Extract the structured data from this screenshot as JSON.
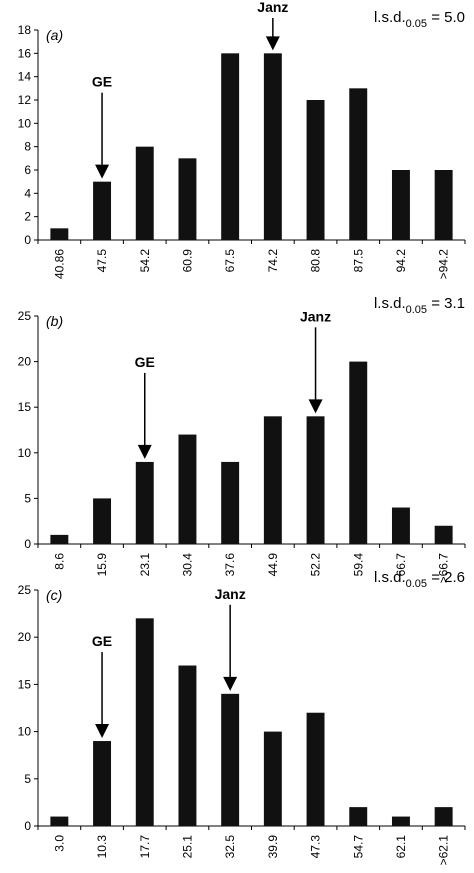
{
  "chart_data": [
    {
      "type": "bar",
      "panel_label": "(a)",
      "lsd": {
        "prefix": "l.s.d.",
        "subscript": "0.05",
        "value": " = 5.0"
      },
      "categories": [
        "40.86",
        "47.5",
        "54.2",
        "60.9",
        "67.5",
        "74.2",
        "80.8",
        "87.5",
        "94.2",
        ">94.2"
      ],
      "values": [
        1,
        5,
        8,
        7,
        16,
        16,
        12,
        13,
        6,
        6
      ],
      "color": "#111111",
      "ylim": [
        0,
        18
      ],
      "yticks": [
        0,
        2,
        4,
        6,
        8,
        10,
        12,
        14,
        16,
        18
      ],
      "annotations": [
        {
          "text": "GE",
          "category": "47.5"
        },
        {
          "text": "Janz",
          "category": "74.2"
        }
      ]
    },
    {
      "type": "bar",
      "panel_label": "(b)",
      "lsd": {
        "prefix": "l.s.d.",
        "subscript": "0.05",
        "value": " = 3.1"
      },
      "categories": [
        "8.6",
        "15.9",
        "23.1",
        "30.4",
        "37.6",
        "44.9",
        "52.2",
        "59.4",
        "66.7",
        ">66.7"
      ],
      "values": [
        1,
        5,
        9,
        12,
        9,
        14,
        14,
        20,
        4,
        2
      ],
      "color": "#111111",
      "ylim": [
        0,
        25
      ],
      "yticks": [
        0,
        5,
        10,
        15,
        20,
        25
      ],
      "annotations": [
        {
          "text": "GE",
          "category": "23.1"
        },
        {
          "text": "Janz",
          "category": "52.2"
        }
      ]
    },
    {
      "type": "bar",
      "panel_label": "(c)",
      "lsd": {
        "prefix": "l.s.d.",
        "subscript": "0.05",
        "value": " = 2.6"
      },
      "categories": [
        "3.0",
        "10.3",
        "17.7",
        "25.1",
        "32.5",
        "39.9",
        "47.3",
        "54.7",
        "62.1",
        ">62.1"
      ],
      "values": [
        1,
        9,
        22,
        17,
        14,
        10,
        12,
        2,
        1,
        2
      ],
      "color": "#111111",
      "ylim": [
        0,
        25
      ],
      "yticks": [
        0,
        5,
        10,
        15,
        20,
        25
      ],
      "annotations": [
        {
          "text": "GE",
          "category": "10.3"
        },
        {
          "text": "Janz",
          "category": "32.5"
        }
      ]
    }
  ]
}
